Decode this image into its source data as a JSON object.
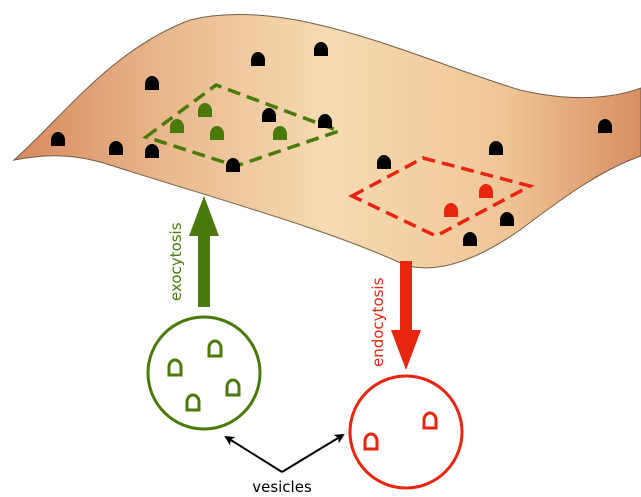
{
  "labels": {
    "exocytosis": "exocytosis",
    "endocytosis": "endocytosis",
    "vesicles": "vesicles"
  },
  "colors": {
    "exocytosis": "#4a7a0a",
    "endocytosis": "#e8250f",
    "receptor": "#000000",
    "membrane_light": "#f6d6aa",
    "membrane_dark": "#d7895e",
    "grid": "#8f7f6b"
  },
  "membrane": {
    "receptor_count": 14,
    "green_receptors": 4,
    "red_receptors": 2
  },
  "vesicles": [
    {
      "kind": "exocytic",
      "cargo": 4
    },
    {
      "kind": "endocytic",
      "cargo": 2
    }
  ]
}
